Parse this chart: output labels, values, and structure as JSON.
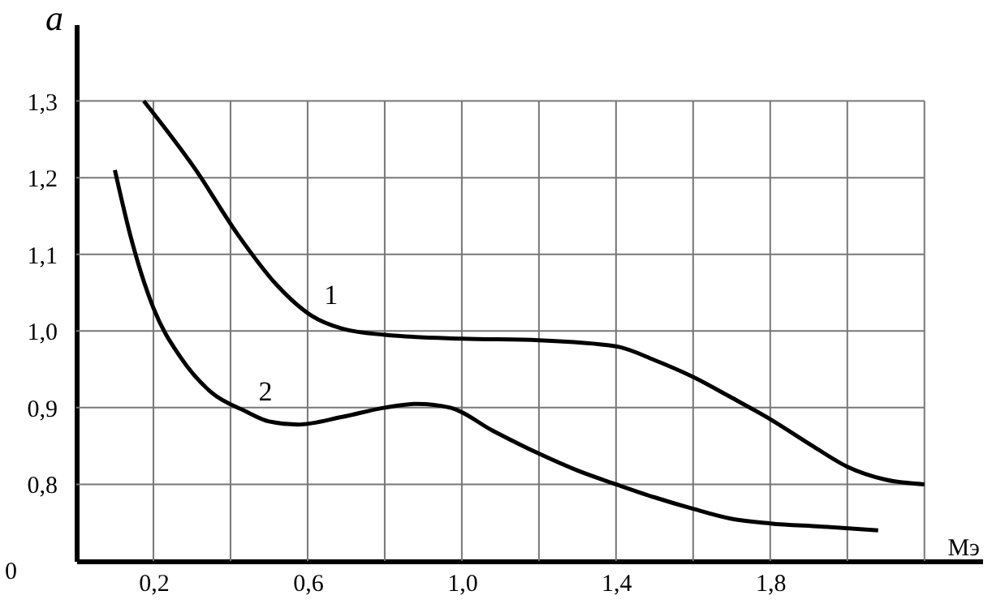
{
  "chart_data": {
    "type": "line",
    "xlabel": "Мэ",
    "ylabel": "a",
    "xlim": [
      0,
      2.35
    ],
    "ylim": [
      0.7,
      1.4
    ],
    "xticks": [
      {
        "value": 0.2,
        "label": "0,2"
      },
      {
        "value": 0.4,
        "label": null
      },
      {
        "value": 0.6,
        "label": "0,6"
      },
      {
        "value": 0.8,
        "label": null
      },
      {
        "value": 1.0,
        "label": "1,0"
      },
      {
        "value": 1.2,
        "label": null
      },
      {
        "value": 1.4,
        "label": "1,4"
      },
      {
        "value": 1.6,
        "label": null
      },
      {
        "value": 1.8,
        "label": "1,8"
      },
      {
        "value": 2.0,
        "label": null
      },
      {
        "value": 2.2,
        "label": null
      }
    ],
    "yticks": [
      {
        "value": 0.8,
        "label": "0,8"
      },
      {
        "value": 0.9,
        "label": "0,9"
      },
      {
        "value": 1.0,
        "label": "1,0"
      },
      {
        "value": 1.1,
        "label": "1,1"
      },
      {
        "value": 1.2,
        "label": "1,2"
      },
      {
        "value": 1.3,
        "label": "1,3"
      }
    ],
    "grid": true,
    "marker": "none",
    "line_style": "solid",
    "series": [
      {
        "name": "1",
        "color": "#000000",
        "x": [
          0.175,
          0.31,
          0.42,
          0.52,
          0.61,
          0.69,
          0.8,
          1.0,
          1.2,
          1.4,
          1.5,
          1.6,
          1.7,
          1.8,
          1.91,
          2.0,
          2.1,
          2.2
        ],
        "values": [
          1.3,
          1.21,
          1.125,
          1.06,
          1.02,
          1.003,
          0.995,
          0.99,
          0.988,
          0.98,
          0.962,
          0.94,
          0.913,
          0.885,
          0.85,
          0.823,
          0.806,
          0.8
        ]
      },
      {
        "name": "2",
        "color": "#000000",
        "x": [
          0.1,
          0.14,
          0.2,
          0.27,
          0.35,
          0.44,
          0.5,
          0.575,
          0.69,
          0.8,
          0.885,
          0.97,
          1.08,
          1.2,
          1.3,
          1.4,
          1.5,
          1.6,
          1.7,
          1.8,
          1.93,
          2.08
        ],
        "values": [
          1.21,
          1.125,
          1.03,
          0.966,
          0.92,
          0.895,
          0.882,
          0.878,
          0.888,
          0.9,
          0.905,
          0.9,
          0.87,
          0.84,
          0.818,
          0.8,
          0.783,
          0.768,
          0.755,
          0.749,
          0.745,
          0.74
        ]
      }
    ],
    "legend": false,
    "annotations": [
      "0"
    ]
  }
}
